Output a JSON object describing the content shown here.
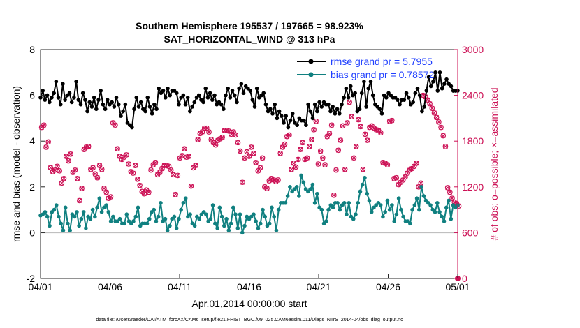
{
  "chart_data": {
    "type": "line",
    "title_line1": "Southern Hemisphere 195537 / 197665 = 98.923%",
    "title_line2": "SAT_HORIZONTAL_WIND @ 313 hPa",
    "xlabel": "Apr.01,2014 00:00:00 start",
    "ylabel_left": "rmse and bias (model - observation)",
    "ylabel_right": "# of obs: o=possible; ×=assimilated",
    "footer": "data file: /Users/raeder/DAI/ATM_forcXX/CAM6_setup/f.e21.FHIST_BGC.f09_025.CAM6assim.011/Diags_NTrS_2014-04/obs_diag_output.nc",
    "x_ticks": [
      "04/01",
      "04/06",
      "04/11",
      "04/16",
      "04/21",
      "04/26",
      "05/01"
    ],
    "xlim": [
      0,
      30
    ],
    "ylim_left": [
      -2,
      8
    ],
    "ylim_right": [
      0,
      3000
    ],
    "left_ticks": [
      "-2",
      "0",
      "2",
      "4",
      "6",
      "8"
    ],
    "right_ticks": [
      "0",
      "600",
      "1200",
      "1800",
      "2400",
      "3000"
    ],
    "colors": {
      "rmse": "#000000",
      "bias": "#108080",
      "obs": "#cc1155",
      "legend_text": "#1f3fff",
      "zero_line": "#c0c0c0"
    },
    "legend": [
      "rmse grand pr = 5.7955",
      "bias grand pr = 0.78572"
    ],
    "rmse": [
      5.9,
      6.2,
      5.8,
      6.0,
      5.7,
      5.9,
      6.1,
      6.6,
      5.9,
      5.6,
      6.5,
      5.8,
      6.0,
      6.1,
      5.7,
      5.9,
      6.6,
      5.8,
      5.6,
      6.1,
      5.8,
      5.3,
      5.7,
      5.5,
      5.9,
      5.4,
      5.8,
      6.2,
      5.6,
      5.4,
      5.8,
      5.6,
      5.7,
      5.5,
      5.9,
      5.6,
      5.1,
      5.3,
      5.6,
      4.8,
      4.7,
      4.6,
      5.4,
      5.9,
      5.5,
      5.7,
      5.4,
      5.3,
      5.9,
      5.5,
      5.2,
      5.6,
      5.4,
      6.3,
      6.1,
      6.2,
      5.9,
      6.3,
      6.0,
      6.2,
      6.2,
      6.1,
      5.6,
      5.9,
      6.0,
      5.6,
      5.9,
      5.3,
      5.5,
      5.7,
      5.9,
      6.0,
      5.8,
      5.7,
      6.3,
      5.9,
      6.1,
      5.8,
      6.0,
      5.6,
      5.7,
      5.6,
      5.4,
      6.0,
      6.3,
      5.9,
      6.2,
      6.0,
      5.7,
      6.3,
      6.5,
      6.1,
      6.4,
      6.3,
      6.2,
      5.8,
      5.5,
      6.3,
      5.9,
      6.0,
      6.1,
      5.6,
      5.3,
      5.4,
      5.2,
      5.6,
      5.0,
      5.3,
      5.1,
      4.8,
      5.1,
      4.6,
      4.9,
      5.2,
      4.8,
      4.7,
      5.0,
      4.9,
      4.9,
      4.7,
      5.6,
      5.3,
      5.0,
      5.6,
      5.3,
      5.7,
      5.5,
      5.7,
      5.6,
      5.6,
      5.3,
      5.5,
      5.2,
      5.4,
      5.2,
      5.6,
      5.9,
      6.3,
      5.9,
      6.4,
      6.0,
      6.1,
      5.3,
      5.4,
      6.1,
      6.6,
      5.5,
      6.3,
      6.6,
      6.0,
      5.6,
      5.5,
      5.4,
      5.2,
      6.0,
      5.9,
      6.1,
      6.0,
      5.9,
      5.9,
      5.8,
      5.6,
      5.8,
      5.8,
      6.1,
      5.9,
      5.6,
      5.7,
      6.1,
      6.3,
      6.0,
      5.3,
      5.5,
      6.2,
      6.8,
      6.4,
      6.6,
      7.0,
      6.2,
      7.0,
      6.3,
      6.5,
      6.7,
      6.5,
      6.4,
      6.2,
      6.2,
      6.2
    ],
    "bias": [
      0.75,
      0.8,
      0.9,
      0.7,
      0.3,
      0.9,
      1.0,
      1.2,
      0.7,
      0.4,
      0.1,
      1.1,
      0.4,
      0.1,
      0.8,
      0.7,
      0.9,
      0.3,
      0.6,
      0.9,
      0.2,
      0.7,
      0.6,
      1.0,
      0.7,
      1.1,
      1.5,
      0.9,
      1.1,
      1.2,
      0.9,
      0.5,
      0.7,
      0.5,
      0.5,
      0.6,
      0.4,
      0.4,
      0.8,
      0.5,
      0.4,
      0.5,
      0.7,
      1.1,
      0.3,
      0.4,
      0.4,
      0.4,
      0.6,
      0.9,
      1.0,
      0.5,
      0.7,
      1.3,
      0.5,
      0.6,
      0.1,
      0.3,
      0.6,
      0.7,
      0.2,
      0.6,
      1.0,
      1.3,
      1.5,
      0.7,
      0.8,
      0.4,
      0.3,
      0.7,
      0.6,
      0.8,
      0.9,
      0.8,
      0.5,
      0.6,
      1.2,
      0.4,
      0.2,
      1.1,
      0.7,
      0.3,
      0.6,
      0.1,
      0.4,
      1.1,
      0.8,
      0.2,
      0.8,
      0.0,
      0.3,
      0.7,
      0.6,
      0.7,
      0.8,
      0.5,
      0.2,
      0.4,
      1.0,
      0.7,
      0.3,
      0.4,
      1.1,
      0.7,
      0.1,
      1.0,
      1.3,
      1.3,
      1.3,
      1.6,
      2.0,
      1.8,
      1.9,
      2.0,
      1.6,
      2.5,
      2.2,
      1.9,
      1.8,
      1.9,
      2.1,
      1.3,
      1.7,
      1.1,
      1.0,
      0.4,
      0.5,
      1.0,
      1.2,
      1.1,
      1.3,
      1.3,
      1.0,
      1.2,
      1.3,
      0.8,
      1.3,
      0.7,
      0.6,
      0.8,
      1.3,
      1.8,
      2.1,
      2.4,
      1.7,
      1.4,
      0.9,
      1.1,
      1.2,
      1.3,
      1.2,
      0.7,
      0.9,
      1.4,
      1.0,
      1.2,
      0.5,
      0.8,
      1.5,
      1.0,
      0.7,
      0.5,
      0.5,
      0.4,
      1.0,
      1.2,
      1.5,
      1.0,
      2.0,
      1.6,
      1.4,
      1.3,
      1.2,
      1.0,
      0.9,
      1.3,
      0.9,
      0.7,
      0.5,
      1.1,
      1.4,
      0.6,
      1.2,
      1.1,
      1.2
    ],
    "obs_counts": [
      1980,
      2010,
      1720,
      1790,
      1450,
      1400,
      1420,
      1470,
      1410,
      1250,
      1310,
      1600,
      1540,
      1630,
      1390,
      1420,
      1310,
      1020,
      1180,
      1690,
      1720,
      1730,
      1430,
      1450,
      1370,
      1320,
      1480,
      1430,
      1180,
      1130,
      1050,
      1070,
      2040,
      2010,
      1700,
      1600,
      1560,
      1590,
      1620,
      1500,
      1400,
      1380,
      1480,
      1300,
      1220,
      1140,
      1110,
      1160,
      1130,
      1420,
      1490,
      1520,
      1360,
      1390,
      1440,
      1480,
      1480,
      1470,
      1420,
      1360,
      1100,
      1350,
      1580,
      1610,
      1700,
      1590,
      1600,
      1210,
      1450,
      1480,
      1820,
      1900,
      1920,
      1970,
      1970,
      1920,
      1820,
      1780,
      1750,
      1810,
      1830,
      1850,
      1940,
      1940,
      1930,
      1890,
      1920,
      1880,
      1780,
      1670,
      1260,
      1580,
      1660,
      1600,
      1720,
      1640,
      1520,
      1410,
      1450,
      1580,
      1200,
      1180,
      1280,
      1310,
      1290,
      1270,
      1290,
      1640,
      1720,
      1760,
      1860,
      1880,
      1430,
      1510,
      1460,
      1560,
      1690,
      1780,
      1560,
      1580,
      1730,
      1820,
      1950,
      2060,
      1500,
      1670,
      1580,
      1490,
      1860,
      1900,
      2010,
      1090,
      1420,
      1680,
      1810,
      2000,
      1430,
      2040,
      2310,
      2120,
      1580,
      1730,
      2080,
      1990,
      1430,
      1890,
      1810,
      1980,
      2000,
      1970,
      1950,
      1940,
      1910,
      1520,
      1510,
      1490,
      2060,
      2070,
      1310,
      1320,
      1230,
      1260,
      1290,
      1330,
      1380,
      1420,
      1440,
      1470,
      1510,
      1200,
      1250,
      2400,
      2380,
      2340,
      2290,
      2230,
      2170,
      2110,
      2050,
      1980,
      1870,
      1730,
      1190,
      1130,
      1050,
      1000,
      980,
      950
    ]
  }
}
